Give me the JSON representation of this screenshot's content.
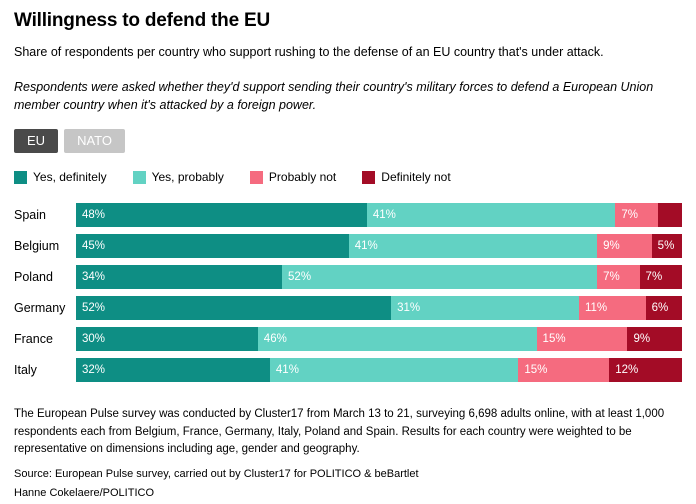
{
  "header": {
    "title": "Willingness to defend the EU",
    "subtitle": "Share of respondents per country who support rushing to the defense of an EU country that's under attack.",
    "note": "Respondents were asked whether they'd support sending their country's military forces to defend a European Union member country when it's attacked by a foreign power."
  },
  "toggle": {
    "eu_label": "EU",
    "nato_label": "NATO",
    "selected": "EU",
    "selected_bg": "#4a4a4a",
    "unselected_bg": "#c6c6c6"
  },
  "chart_data": {
    "type": "bar",
    "stacked": true,
    "orientation": "horizontal",
    "unit": "%",
    "xlim": [
      0,
      100
    ],
    "grid": false,
    "legend_position": "top",
    "categories": [
      "Spain",
      "Belgium",
      "Poland",
      "Germany",
      "France",
      "Italy"
    ],
    "series": [
      {
        "name": "Yes, definitely",
        "color": "#0e8e84",
        "values": [
          48,
          45,
          34,
          52,
          30,
          32
        ]
      },
      {
        "name": "Yes, probably",
        "color": "#62d2c3",
        "values": [
          41,
          41,
          52,
          31,
          46,
          41
        ]
      },
      {
        "name": "Probably not",
        "color": "#f56b7f",
        "values": [
          7,
          9,
          7,
          11,
          15,
          15
        ]
      },
      {
        "name": "Definitely not",
        "color": "#a30c26",
        "values": [
          4,
          5,
          7,
          6,
          9,
          12
        ]
      }
    ],
    "data_labels": [
      [
        "48%",
        "41%",
        "7%",
        ""
      ],
      [
        "45%",
        "41%",
        "9%",
        "5%"
      ],
      [
        "34%",
        "52%",
        "7%",
        "7%"
      ],
      [
        "52%",
        "31%",
        "11%",
        "6%"
      ],
      [
        "30%",
        "46%",
        "15%",
        "9%"
      ],
      [
        "32%",
        "41%",
        "15%",
        "12%"
      ]
    ]
  },
  "footer": {
    "methodology": "The European Pulse survey was conducted by Cluster17 from March 13 to 21, surveying 6,698 adults online, with at least 1,000 respondents each from Belgium, France, Germany, Italy, Poland and Spain. Results for each country were weighted to be representative on dimensions including age, gender and geography.",
    "source": "Source: European Pulse survey, carried out by Cluster17 for POLITICO & beBartlet",
    "credit": "Hanne Cokelaere/POLITICO"
  }
}
